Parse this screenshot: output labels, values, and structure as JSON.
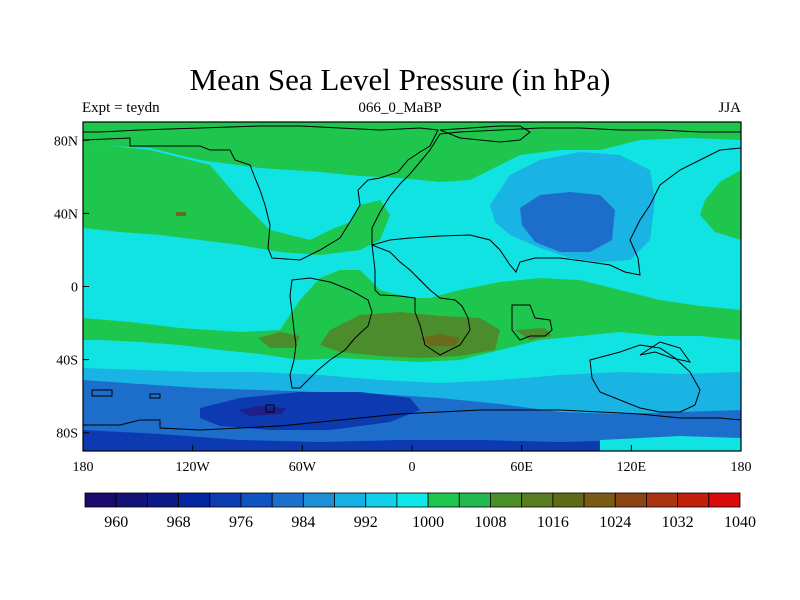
{
  "title": "Mean Sea Level Pressure (in hPa)",
  "subtitle_left": "Expt = teydn",
  "subtitle_center": "066_0_MaBP",
  "subtitle_right": "JJA",
  "axes": {
    "x_ticks": [
      {
        "value": -180,
        "label": "180"
      },
      {
        "value": -120,
        "label": "120W"
      },
      {
        "value": -60,
        "label": "60W"
      },
      {
        "value": 0,
        "label": "0"
      },
      {
        "value": 60,
        "label": "60E"
      },
      {
        "value": 120,
        "label": "120E"
      },
      {
        "value": 180,
        "label": "180"
      }
    ],
    "y_ticks": [
      {
        "value": 80,
        "label": "80N"
      },
      {
        "value": 40,
        "label": "40N"
      },
      {
        "value": 0,
        "label": "0"
      },
      {
        "value": -40,
        "label": "40S"
      },
      {
        "value": -80,
        "label": "80S"
      }
    ],
    "lon_range": [
      -180,
      180
    ],
    "lat_range": [
      -90,
      90
    ]
  },
  "colorbar": {
    "colors": [
      "#1b0a6e",
      "#14137a",
      "#0c1a88",
      "#0426a0",
      "#0b3cb0",
      "#1054c2",
      "#1a70cc",
      "#1e90d6",
      "#16b0e4",
      "#12d0ea",
      "#0ee8e8",
      "#1ec850",
      "#24b850",
      "#4a8f2a",
      "#5a7c20",
      "#5e6a14",
      "#7a5a14",
      "#8c4414",
      "#a83410",
      "#c21e0c",
      "#d80a0a"
    ],
    "labels": [
      "960",
      "968",
      "976",
      "984",
      "992",
      "1000",
      "1008",
      "1016",
      "1024",
      "1032",
      "1040"
    ]
  },
  "map_colors": {
    "background": "#11e3e3",
    "green": "#1fc64e",
    "olive": "#4b8c2d",
    "brown": "#6a6c1c",
    "mid_blue": "#19b3e4",
    "blue": "#1d6ecb",
    "dark_blue": "#0d3ab0",
    "deepest": "#1f1f8a",
    "land_outline": "#000000"
  }
}
